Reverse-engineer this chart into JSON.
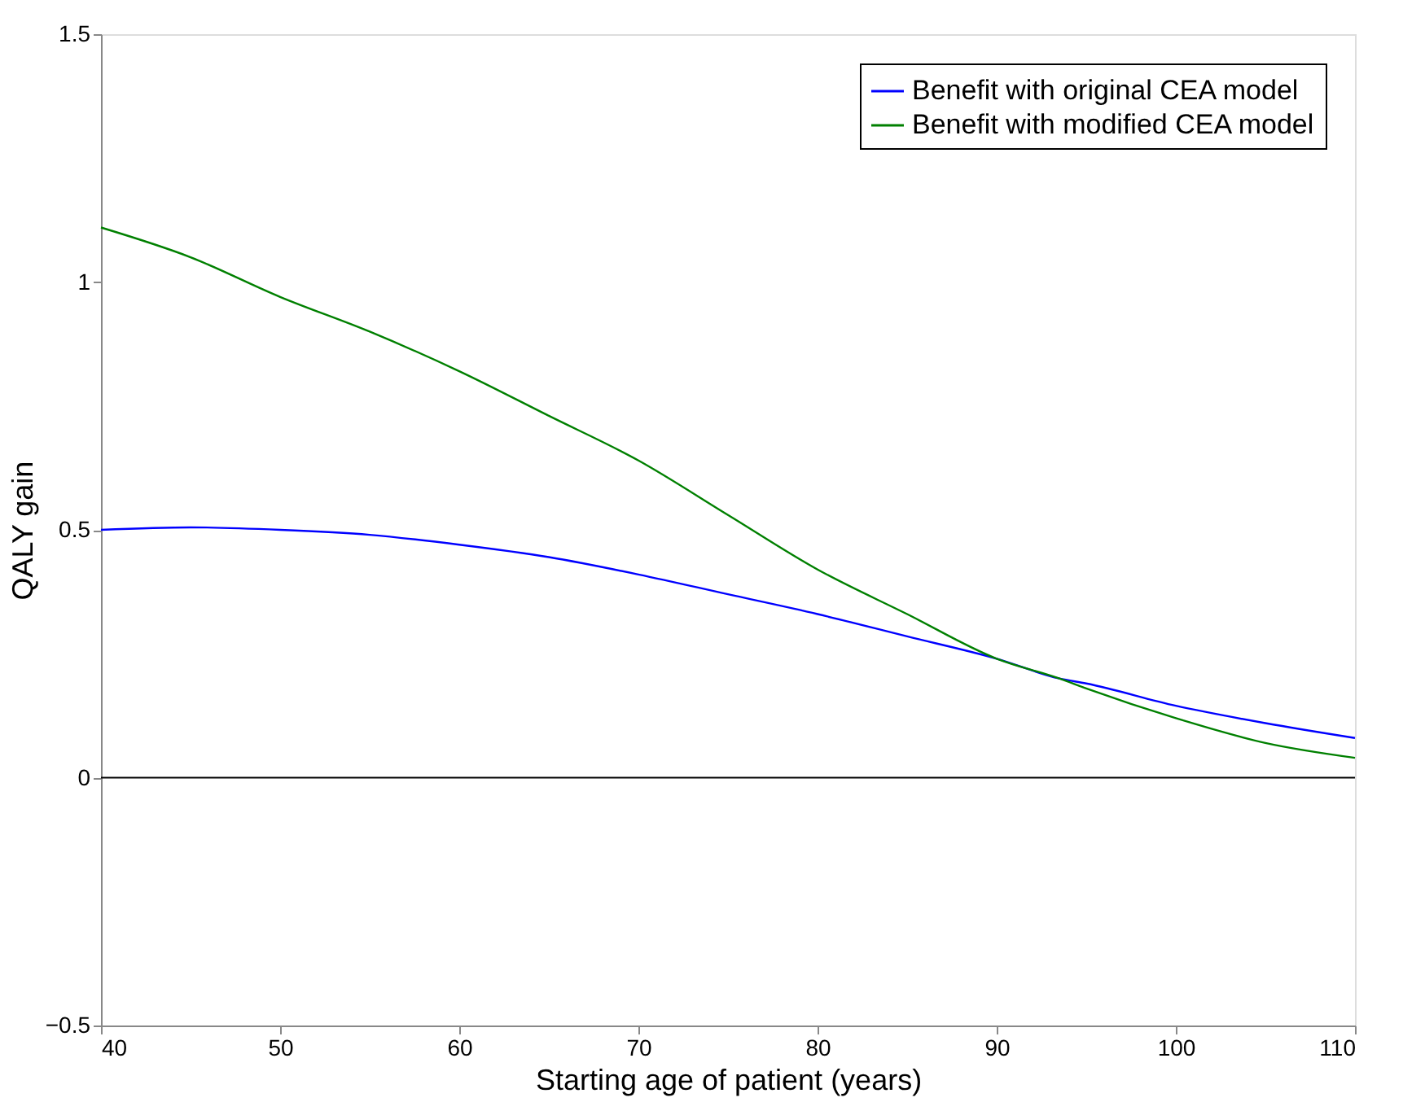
{
  "chart_data": {
    "type": "line",
    "xlabel": "Starting age of patient (years)",
    "ylabel": "QALY gain",
    "x": [
      40,
      45,
      50,
      55,
      60,
      65,
      70,
      75,
      80,
      85,
      90,
      93.5,
      95,
      100,
      105,
      110
    ],
    "series": [
      {
        "name": "Benefit with original CEA model",
        "color": "#0000ff",
        "values": [
          0.5,
          0.505,
          0.5,
          0.49,
          0.47,
          0.445,
          0.41,
          0.37,
          0.33,
          0.285,
          0.24,
          0.2,
          0.19,
          0.145,
          0.11,
          0.08
        ]
      },
      {
        "name": "Benefit with modified CEA model",
        "color": "#008000",
        "values": [
          1.11,
          1.05,
          0.97,
          0.9,
          0.82,
          0.73,
          0.64,
          0.53,
          0.42,
          0.33,
          0.24,
          0.2,
          0.18,
          0.12,
          0.07,
          0.04
        ]
      }
    ],
    "xlim": [
      40,
      110
    ],
    "xticks": [
      40,
      50,
      60,
      70,
      80,
      90,
      100,
      110
    ],
    "ylim": [
      -0.5,
      1.5
    ],
    "yticks": [
      {
        "value": -0.5,
        "label": "−0.5"
      },
      0,
      0.5,
      1,
      1.5
    ],
    "ref_lines": [
      {
        "axis": "y",
        "value": 0,
        "color": "#000000"
      }
    ],
    "legend": "top right",
    "grid": false,
    "marker": "none",
    "line_style": "solid"
  }
}
